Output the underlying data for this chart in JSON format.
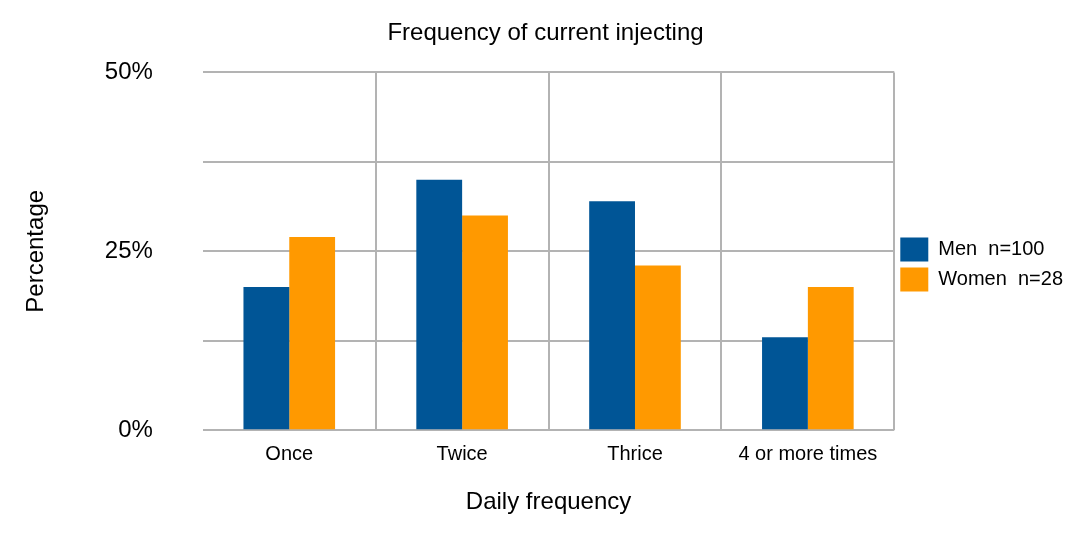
{
  "chart_data": {
    "type": "bar",
    "title": "Frequency of current injecting",
    "xlabel": "Daily frequency",
    "ylabel": "Percentage",
    "categories": [
      "Once",
      "Twice",
      "Thrice",
      "4 or more times"
    ],
    "series": [
      {
        "name": "Men  n=100",
        "color": "#005596",
        "values": [
          20,
          35,
          32,
          13
        ]
      },
      {
        "name": "Women  n=28",
        "color": "#ff9900",
        "values": [
          27,
          30,
          23,
          20
        ]
      }
    ],
    "ylim": [
      0,
      50
    ],
    "yticks": [
      {
        "value": 0,
        "label": "0%"
      },
      {
        "value": 12.5,
        "label": null
      },
      {
        "value": 25,
        "label": "25%"
      },
      {
        "value": 37.5,
        "label": null
      },
      {
        "value": 50,
        "label": "50%"
      }
    ],
    "grid": true,
    "legend": "right"
  }
}
